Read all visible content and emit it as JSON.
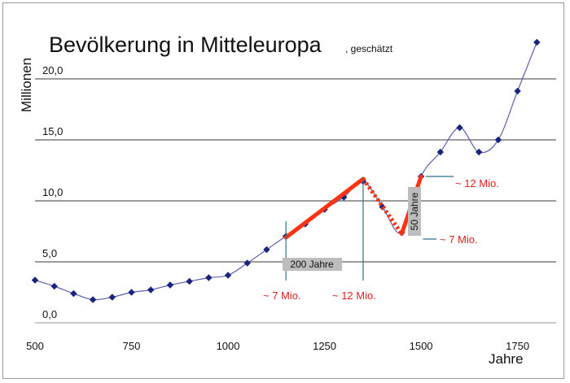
{
  "chart_data": {
    "type": "line",
    "title": "Bevölkerung in Mitteleuropa",
    "subtitle": "geschätzt",
    "xlabel": "Jahre",
    "ylabel": "Millionen",
    "xlim": [
      500,
      1850
    ],
    "ylim": [
      0,
      24
    ],
    "x_ticks": [
      "500",
      "750",
      "1000",
      "1250",
      "1500",
      "1750"
    ],
    "y_ticks": [
      "0,0",
      "5,0",
      "10,0",
      "15,0",
      "20,0"
    ],
    "grid": "horizontal",
    "series": [
      {
        "color": "#1a237e",
        "x": [
          500,
          550,
          600,
          650,
          700,
          750,
          800,
          850,
          900,
          950,
          1000,
          1050,
          1100,
          1150,
          1200,
          1250,
          1300,
          1350,
          1400,
          1450,
          1500,
          1550,
          1600,
          1650,
          1700,
          1750,
          1800
        ],
        "y": [
          3.5,
          3.0,
          2.4,
          1.9,
          2.1,
          2.5,
          2.7,
          3.1,
          3.4,
          3.7,
          3.9,
          4.9,
          6.0,
          7.1,
          8.1,
          9.3,
          10.3,
          11.6,
          9.5,
          7.4,
          12.0,
          14.0,
          16.0,
          14.0,
          15.0,
          19.0,
          23.0
        ]
      }
    ],
    "annotations": {
      "growth_1": {
        "x": [
          1150,
          1350
        ],
        "y": [
          7.0,
          11.8
        ],
        "color": "#ff3311"
      },
      "decline": {
        "x": [
          1350,
          1450
        ],
        "y": [
          11.8,
          7.3
        ],
        "color": "#ff3311",
        "style": "dotted"
      },
      "growth_2": {
        "x": [
          1450,
          1500
        ],
        "y": [
          7.3,
          12.0
        ],
        "color": "#ff3311"
      },
      "label_200_years": "200 Jahre",
      "label_50_years": "50 Jahre",
      "label_7_mio_left": "~ 7 Mio.",
      "label_12_mio_left": "~ 12 Mio.",
      "label_12_mio_right": "~ 12 Mio.",
      "label_7_mio_right": "~ 7 Mio."
    }
  }
}
